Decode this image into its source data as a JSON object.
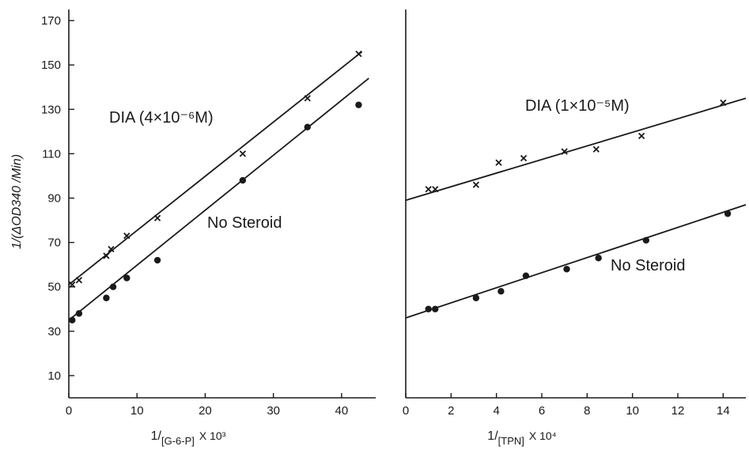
{
  "chart_data": [
    {
      "type": "scatter",
      "xlabel_prefix": "1/",
      "xlabel_bracket": "[G-6-P]",
      "xlabel_suffix": "X 10³",
      "ylabel": "1/(ΔOD340 /Min)",
      "xlim": [
        0,
        45
      ],
      "ylim": [
        0,
        175
      ],
      "xticks": [
        0,
        10,
        20,
        30,
        40
      ],
      "yticks": [
        10,
        30,
        50,
        70,
        90,
        110,
        130,
        150,
        170
      ],
      "series": [
        {
          "marker": "x",
          "points": [
            [
              0.5,
              51
            ],
            [
              1.5,
              53
            ],
            [
              5.5,
              64
            ],
            [
              6.2,
              67
            ],
            [
              8.5,
              73
            ],
            [
              13,
              81
            ],
            [
              25.5,
              110
            ],
            [
              35,
              135
            ],
            [
              42.5,
              155
            ]
          ],
          "fit": [
            [
              0,
              51
            ],
            [
              43,
              156
            ]
          ]
        },
        {
          "marker": "dot",
          "points": [
            [
              0.5,
              35
            ],
            [
              1.5,
              38
            ],
            [
              5.5,
              45
            ],
            [
              6.5,
              50
            ],
            [
              8.5,
              54
            ],
            [
              13,
              62
            ],
            [
              25.5,
              98
            ],
            [
              35,
              122
            ],
            [
              42.5,
              132
            ]
          ],
          "fit": [
            [
              0,
              35
            ],
            [
              44,
              144
            ]
          ]
        }
      ],
      "annotations": [
        "DIA (4×10⁻⁶M)",
        "No Steroid"
      ]
    },
    {
      "type": "scatter",
      "xlabel_prefix": "1/",
      "xlabel_bracket": "[TPN]",
      "xlabel_suffix": "X 10⁴",
      "xlim": [
        0,
        15
      ],
      "ylim": [
        0,
        175
      ],
      "xticks": [
        0,
        2,
        4,
        6,
        8,
        10,
        12,
        14
      ],
      "series": [
        {
          "marker": "x",
          "points": [
            [
              1,
              94
            ],
            [
              1.3,
              94
            ],
            [
              3.1,
              96
            ],
            [
              4.1,
              106
            ],
            [
              5.2,
              108
            ],
            [
              7,
              111
            ],
            [
              8.4,
              112
            ],
            [
              10.4,
              118
            ],
            [
              14,
              133
            ]
          ],
          "fit": [
            [
              0,
              89
            ],
            [
              15,
              135
            ]
          ]
        },
        {
          "marker": "dot",
          "points": [
            [
              1,
              40
            ],
            [
              1.3,
              40
            ],
            [
              3.1,
              45
            ],
            [
              4.2,
              48
            ],
            [
              5.3,
              55
            ],
            [
              7.1,
              58
            ],
            [
              8.5,
              63
            ],
            [
              10.6,
              71
            ],
            [
              14.2,
              83
            ]
          ],
          "fit": [
            [
              0,
              36
            ],
            [
              15,
              87
            ]
          ]
        }
      ],
      "annotations": [
        "DIA (1×10⁻⁵M)",
        "No Steroid"
      ]
    }
  ]
}
